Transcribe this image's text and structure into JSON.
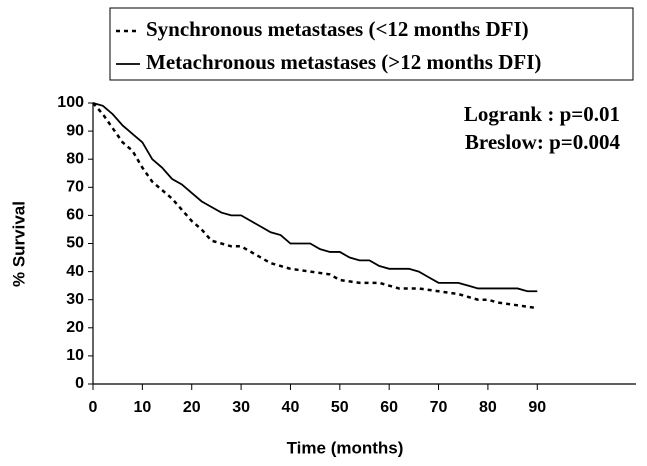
{
  "chart_data": {
    "type": "line",
    "ylabel": "% Survival",
    "xlabel": "Time (months)",
    "annotations": [
      "Logrank : p=0.01",
      "Breslow: p=0.004"
    ],
    "xlim": [
      0,
      110
    ],
    "xticks": [
      0,
      10,
      20,
      30,
      40,
      50,
      60,
      70,
      80,
      90
    ],
    "ylim": [
      0,
      100
    ],
    "yticks": [
      0,
      10,
      20,
      30,
      40,
      50,
      60,
      70,
      80,
      90,
      100
    ],
    "grid": false,
    "legend": "top",
    "series": [
      {
        "name": "Synchronous metastases (<12 months DFI)",
        "color": "#000000",
        "dash": true,
        "x": [
          0,
          2,
          4,
          6,
          8,
          10,
          12,
          14,
          16,
          18,
          20,
          22,
          24,
          26,
          28,
          30,
          32,
          34,
          36,
          38,
          40,
          44,
          48,
          50,
          54,
          58,
          60,
          62,
          66,
          70,
          74,
          76,
          78,
          80,
          82,
          86,
          90
        ],
        "values": [
          100,
          96,
          91,
          86,
          83,
          77,
          72,
          69,
          66,
          62,
          58,
          55,
          51,
          50,
          49,
          49,
          47,
          45,
          43,
          42,
          41,
          40,
          39,
          37,
          36,
          36,
          35,
          34,
          34,
          33,
          32,
          31,
          30,
          30,
          29,
          28,
          27
        ]
      },
      {
        "name": "Metachronous metastases (>12 months DFI)",
        "color": "#000000",
        "dash": false,
        "x": [
          0,
          2,
          4,
          6,
          8,
          10,
          12,
          14,
          16,
          18,
          20,
          22,
          24,
          26,
          28,
          30,
          32,
          34,
          36,
          38,
          40,
          44,
          46,
          48,
          50,
          52,
          54,
          56,
          58,
          60,
          64,
          66,
          68,
          70,
          74,
          76,
          78,
          86,
          88,
          90
        ],
        "values": [
          100,
          99,
          96,
          92,
          89,
          86,
          80,
          77,
          73,
          71,
          68,
          65,
          63,
          61,
          60,
          60,
          58,
          56,
          54,
          53,
          50,
          50,
          48,
          47,
          47,
          45,
          44,
          44,
          42,
          41,
          41,
          40,
          38,
          36,
          36,
          35,
          34,
          34,
          33,
          33
        ]
      }
    ]
  }
}
